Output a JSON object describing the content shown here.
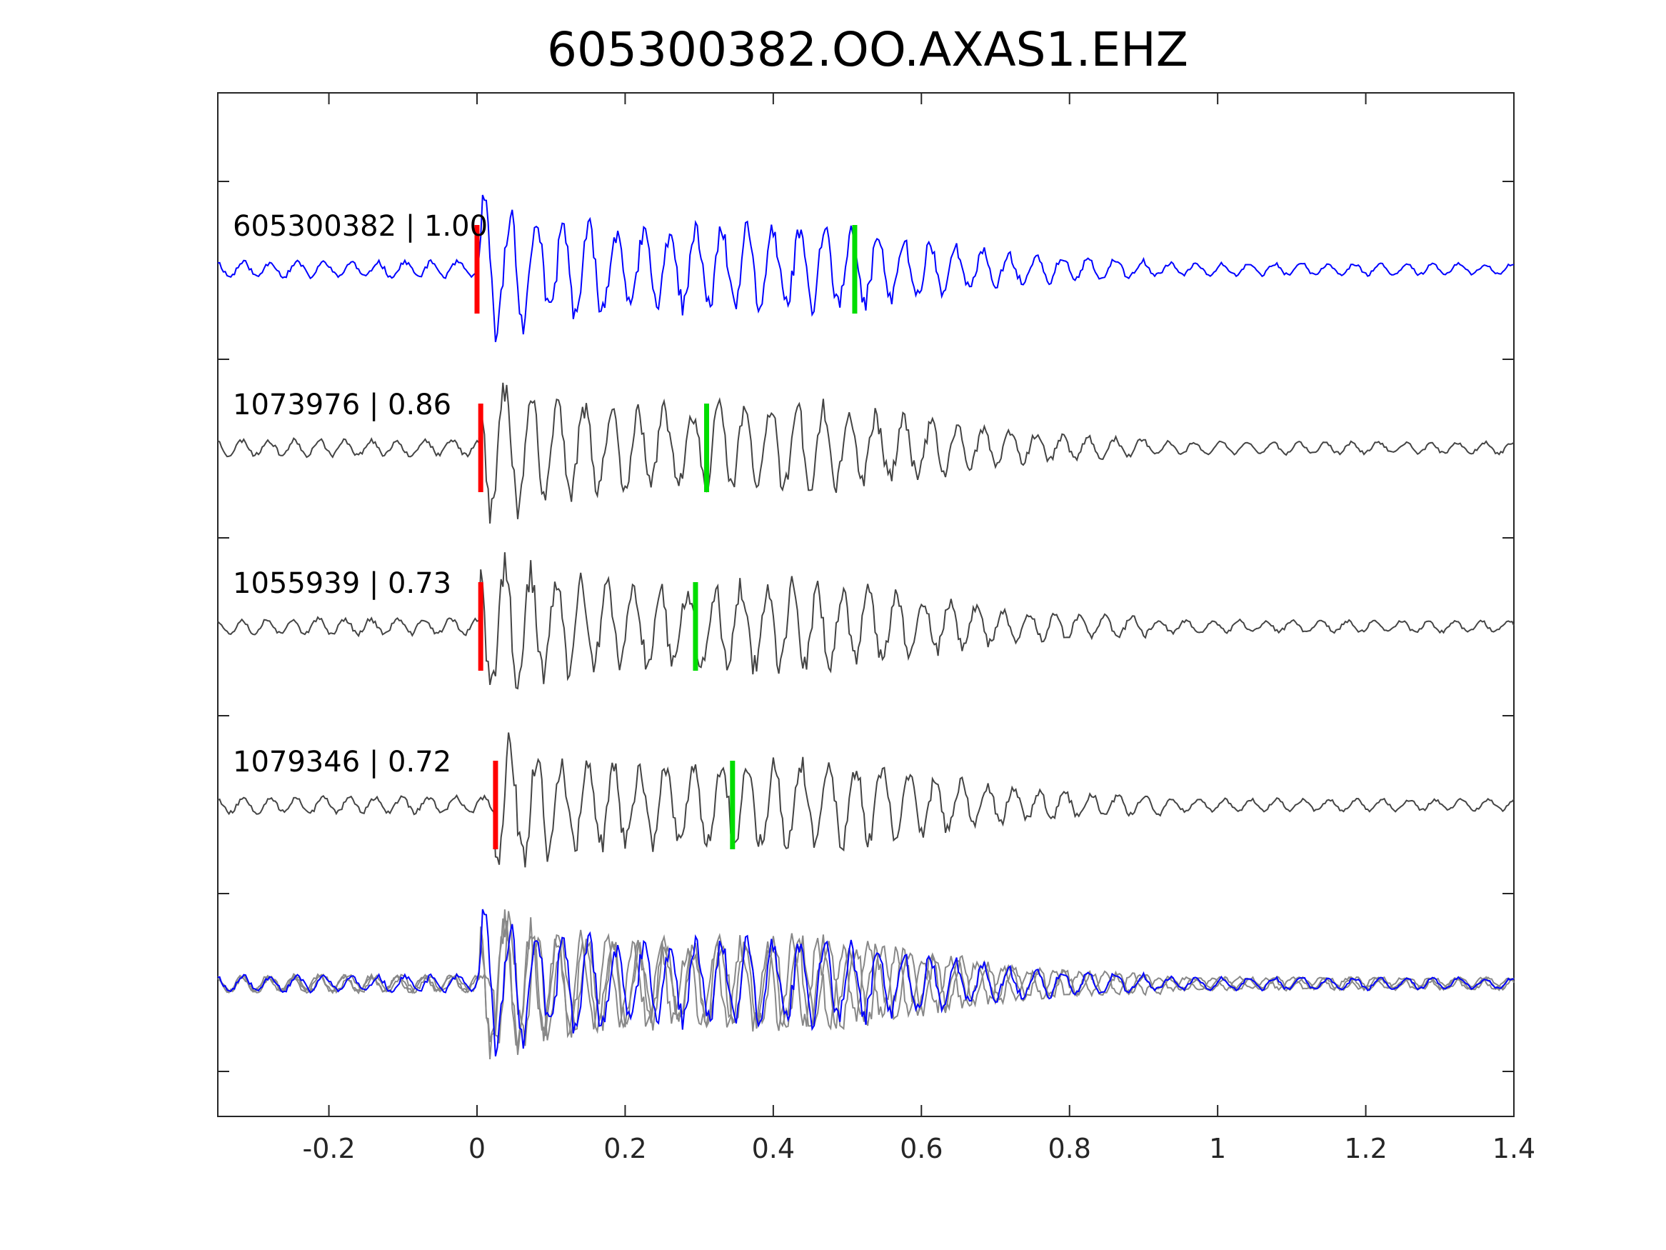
{
  "chart_data": {
    "type": "line",
    "title": "605300382.OO.AXAS1.EHZ",
    "xlabel": "",
    "ylabel": "",
    "xlim": [
      -0.35,
      1.4
    ],
    "xticks": [
      -0.2,
      0,
      0.2,
      0.4,
      0.6,
      0.8,
      1,
      1.2,
      1.4
    ],
    "xtick_labels": [
      "-0.2",
      "0",
      "0.2",
      "0.4",
      "0.6",
      "0.8",
      "1",
      "1.2",
      "1.4"
    ],
    "grid": false,
    "colors": {
      "template": "#0000ff",
      "match": "#444444",
      "overlay_match": "#888888",
      "p_pick": "#ff0000",
      "s_pick": "#00dd00",
      "axis": "#262626"
    },
    "traces": [
      {
        "id": "605300382",
        "cc": "1.00",
        "label": "605300382 | 1.00",
        "p_pick": 0.0,
        "s_pick": 0.51,
        "color": "template",
        "seed": 11
      },
      {
        "id": "1073976",
        "cc": "0.86",
        "label": "1073976 | 0.86",
        "p_pick": 0.005,
        "s_pick": 0.31,
        "color": "match",
        "seed": 23
      },
      {
        "id": "1055939",
        "cc": "0.73",
        "label": "1055939 | 0.73",
        "p_pick": 0.005,
        "s_pick": 0.295,
        "color": "match",
        "seed": 37
      },
      {
        "id": "1079346",
        "cc": "0.72",
        "label": "1079346 | 0.72",
        "p_pick": 0.025,
        "s_pick": 0.345,
        "color": "match",
        "seed": 53
      }
    ],
    "overlay": {
      "description": "stacked overlay of all traces",
      "traces": [
        "605300382",
        "1073976",
        "1055939",
        "1079346"
      ]
    }
  }
}
